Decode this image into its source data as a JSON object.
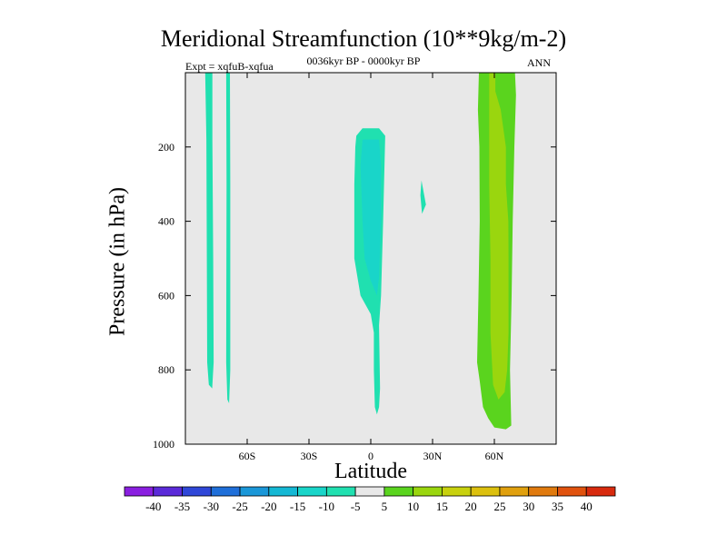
{
  "chart_data": {
    "type": "contour",
    "title": "Meridional Streamfunction (10**9kg/m-2)",
    "subtitle_center": "0036kyr BP - 0000kyr BP",
    "subtitle_left": "Expt = xqfuB-xqfua",
    "subtitle_right": "ANN",
    "xlabel": "Latitude",
    "ylabel": "Pressure (in hPa)",
    "xlim": [
      -90,
      90
    ],
    "ylim": [
      1000,
      0
    ],
    "xticks": [
      {
        "value": -60,
        "label": "60S"
      },
      {
        "value": -30,
        "label": "30S"
      },
      {
        "value": 0,
        "label": "0"
      },
      {
        "value": 30,
        "label": "30N"
      },
      {
        "value": 60,
        "label": "60N"
      }
    ],
    "yticks": [
      {
        "value": 200,
        "label": "200"
      },
      {
        "value": 400,
        "label": "400"
      },
      {
        "value": 600,
        "label": "600"
      },
      {
        "value": 800,
        "label": "800"
      },
      {
        "value": 1000,
        "label": "1000"
      }
    ],
    "colorbar": {
      "labels": [
        "-40",
        "-35",
        "-30",
        "-25",
        "-20",
        "-15",
        "-10",
        "-5",
        "5",
        "10",
        "15",
        "20",
        "25",
        "30",
        "35",
        "40"
      ],
      "colors": [
        "#8a1fe0",
        "#5b2ad9",
        "#2f47d8",
        "#1f6fd9",
        "#1a97d8",
        "#14b8d4",
        "#19d5c9",
        "#20e0b0",
        "#e8e8e8",
        "#5ad41e",
        "#9ad60e",
        "#c8d10e",
        "#dcc00e",
        "#e0a00e",
        "#e07a0e",
        "#e0520e",
        "#d82a0e"
      ]
    },
    "regions": [
      {
        "name": "cell-80S",
        "value_class": "-10 to -5",
        "color": "#20e0b0",
        "polygon": [
          [
            -80.4,
            0
          ],
          [
            -76.9,
            0
          ],
          [
            -76.9,
            180
          ],
          [
            -76.5,
            500
          ],
          [
            -76.3,
            780
          ],
          [
            -77.0,
            850
          ],
          [
            -78.6,
            840
          ],
          [
            -79.4,
            780
          ],
          [
            -79.6,
            500
          ],
          [
            -79.8,
            180
          ]
        ]
      },
      {
        "name": "cell-70S",
        "value_class": "-10 to -5",
        "color": "#20e0b0",
        "polygon": [
          [
            -70.2,
            0
          ],
          [
            -68.4,
            0
          ],
          [
            -68.2,
            300
          ],
          [
            -68.2,
            800
          ],
          [
            -68.8,
            890
          ],
          [
            -69.6,
            880
          ],
          [
            -70.2,
            780
          ],
          [
            -70.0,
            300
          ]
        ]
      },
      {
        "name": "cell-equator-outer",
        "value_class": "-10 to -5",
        "color": "#20e0b0",
        "polygon": [
          [
            -7.0,
            170
          ],
          [
            -4.0,
            150
          ],
          [
            4.0,
            150
          ],
          [
            7.0,
            170
          ],
          [
            6.0,
            400
          ],
          [
            5.0,
            600
          ],
          [
            4.0,
            680
          ],
          [
            4.5,
            850
          ],
          [
            4.0,
            900
          ],
          [
            3.0,
            920
          ],
          [
            2.0,
            900
          ],
          [
            1.5,
            800
          ],
          [
            1.5,
            700
          ],
          [
            0.0,
            650
          ],
          [
            -5.0,
            600
          ],
          [
            -8.0,
            500
          ],
          [
            -8.0,
            300
          ],
          [
            -7.5,
            200
          ]
        ]
      },
      {
        "name": "cell-equator-inner",
        "value_class": "-15 to -10",
        "color": "#19d5c9",
        "polygon": [
          [
            -4.0,
            180
          ],
          [
            4.0,
            180
          ],
          [
            5.0,
            250
          ],
          [
            5.0,
            400
          ],
          [
            4.0,
            550
          ],
          [
            3.0,
            600
          ],
          [
            0.0,
            560
          ],
          [
            -3.0,
            500
          ],
          [
            -4.0,
            400
          ],
          [
            -5.0,
            250
          ]
        ]
      },
      {
        "name": "cell-25N",
        "value_class": "-10 to -5",
        "color": "#20e0b0",
        "polygon": [
          [
            24.6,
            290
          ],
          [
            26.8,
            355
          ],
          [
            24.9,
            380
          ],
          [
            24.1,
            330
          ]
        ]
      },
      {
        "name": "cell-60N-outer",
        "value_class": "5 to 10",
        "color": "#5ad41e",
        "polygon": [
          [
            52.5,
            0
          ],
          [
            70.0,
            0
          ],
          [
            70.5,
            60
          ],
          [
            69.7,
            200
          ],
          [
            68.9,
            400
          ],
          [
            68.4,
            600
          ],
          [
            67.6,
            800
          ],
          [
            68.2,
            950
          ],
          [
            65.6,
            960
          ],
          [
            60.0,
            955
          ],
          [
            57.0,
            930
          ],
          [
            54.5,
            900
          ],
          [
            52.9,
            830
          ],
          [
            51.6,
            780
          ],
          [
            52.3,
            600
          ],
          [
            52.9,
            400
          ],
          [
            52.7,
            200
          ],
          [
            52.0,
            100
          ]
        ]
      },
      {
        "name": "cell-60N-inner",
        "value_class": "10 to 15",
        "color": "#9ad60e",
        "polygon": [
          [
            57.5,
            0
          ],
          [
            60.5,
            0
          ],
          [
            60.5,
            50
          ],
          [
            63.1,
            100
          ],
          [
            65.6,
            200
          ],
          [
            65.6,
            300
          ],
          [
            66.8,
            400
          ],
          [
            66.9,
            500
          ],
          [
            66.9,
            700
          ],
          [
            66.2,
            800
          ],
          [
            65.0,
            860
          ],
          [
            62.0,
            880
          ],
          [
            59.4,
            840
          ],
          [
            58.1,
            700
          ],
          [
            58.1,
            500
          ],
          [
            57.5,
            300
          ]
        ]
      }
    ]
  }
}
